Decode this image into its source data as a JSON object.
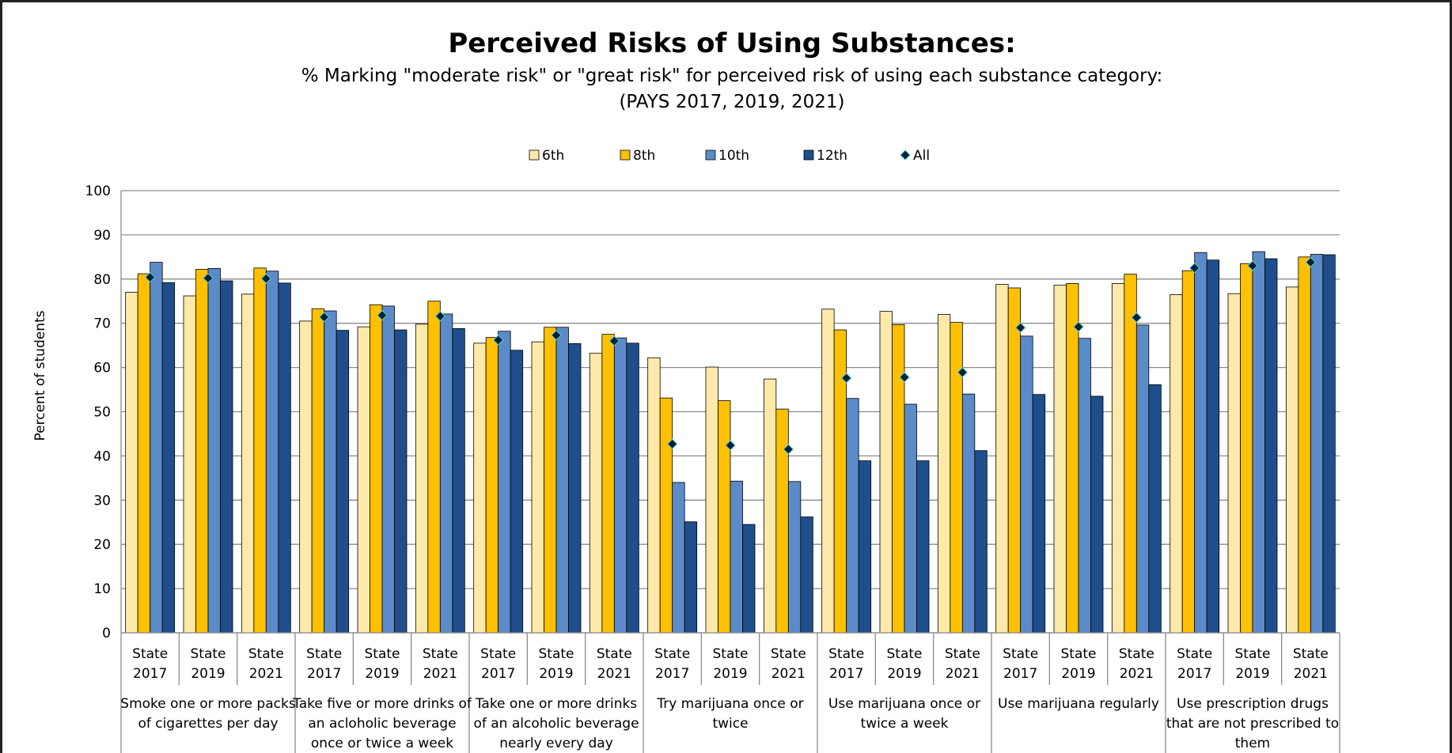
{
  "chart_data": {
    "type": "bar",
    "title": "Perceived Risks of Using Substances:",
    "subtitle_lines": [
      "% Marking \"moderate risk\" or \"great risk\" for perceived risk of using each substance category:",
      "(PAYS 2017, 2019, 2021)"
    ],
    "ylabel": "Percent of students",
    "ylim": [
      0,
      100
    ],
    "yticks": [
      "0",
      "10",
      "20",
      "30",
      "40",
      "50",
      "60",
      "70",
      "80",
      "90",
      "100"
    ],
    "grid": true,
    "legend_position": "top",
    "categories": [
      "State 2017",
      "State 2019",
      "State 2021",
      "State 2017",
      "State 2019",
      "State 2021",
      "State 2017",
      "State 2019",
      "State 2021",
      "State 2017",
      "State 2019",
      "State 2021",
      "State 2017",
      "State 2019",
      "State 2021",
      "State 2017",
      "State 2019",
      "State 2021",
      "State 2017",
      "State 2019",
      "State 2021"
    ],
    "groups": [
      {
        "label_lines": [
          "Smoke one or more packs",
          "of cigarettes per day"
        ]
      },
      {
        "label_lines": [
          "Take five or more drinks of",
          "an acloholic beverage",
          "once or twice a week"
        ]
      },
      {
        "label_lines": [
          "Take one or more drinks",
          "of an alcoholic beverage",
          "nearly every day"
        ]
      },
      {
        "label_lines": [
          "Try marijuana once or",
          "twice"
        ]
      },
      {
        "label_lines": [
          "Use marijuana once or",
          "twice a week"
        ]
      },
      {
        "label_lines": [
          "Use marijuana regularly"
        ]
      },
      {
        "label_lines": [
          "Use prescription drugs",
          "that are not prescribed to",
          "them"
        ]
      }
    ],
    "series": [
      {
        "name": "6th",
        "kind": "bar",
        "color": "#FDE9A9",
        "values": [
          77.0,
          76.2,
          76.6,
          70.5,
          69.2,
          69.8,
          65.5,
          65.8,
          63.2,
          62.2,
          60.1,
          57.4,
          73.2,
          72.7,
          72.0,
          78.8,
          78.6,
          79.0,
          76.5,
          76.7,
          78.2
        ]
      },
      {
        "name": "8th",
        "kind": "bar",
        "color": "#FFC000",
        "values": [
          81.2,
          82.2,
          82.5,
          73.3,
          74.2,
          75.0,
          66.8,
          69.1,
          67.5,
          53.1,
          52.5,
          50.6,
          68.5,
          69.7,
          70.2,
          78.0,
          79.0,
          81.1,
          81.9,
          83.5,
          85.0
        ]
      },
      {
        "name": "10th",
        "kind": "bar",
        "color": "#5B8BC9",
        "values": [
          83.8,
          82.4,
          81.8,
          72.8,
          73.9,
          72.1,
          68.2,
          69.1,
          66.7,
          34.0,
          34.3,
          34.2,
          53.0,
          51.7,
          54.0,
          67.1,
          66.6,
          69.6,
          86.0,
          86.2,
          85.6
        ]
      },
      {
        "name": "12th",
        "kind": "bar",
        "color": "#1F4E8C",
        "values": [
          79.2,
          79.6,
          79.1,
          68.4,
          68.5,
          68.8,
          63.9,
          65.4,
          65.5,
          25.1,
          24.5,
          26.2,
          38.9,
          38.9,
          41.2,
          53.9,
          53.5,
          56.1,
          84.3,
          84.6,
          85.5
        ]
      },
      {
        "name": "All",
        "kind": "marker",
        "color": "#0B1F33",
        "values": [
          80.4,
          80.2,
          80.1,
          71.4,
          71.8,
          71.6,
          66.2,
          67.3,
          66.0,
          42.7,
          42.4,
          41.5,
          57.6,
          57.8,
          58.9,
          69.0,
          69.2,
          71.3,
          82.5,
          83.0,
          83.8
        ]
      }
    ]
  }
}
